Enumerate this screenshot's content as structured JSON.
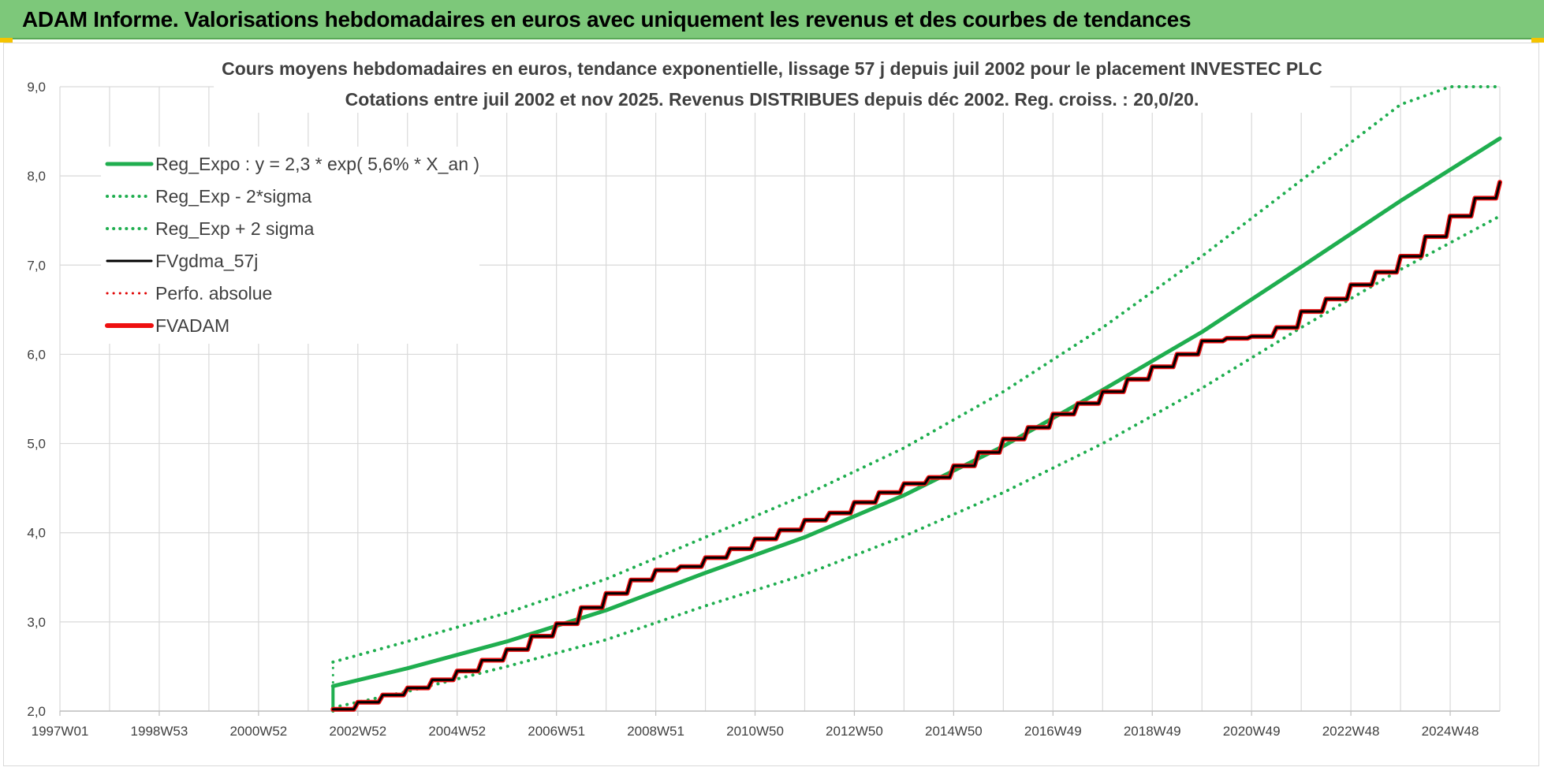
{
  "header": {
    "title": "ADAM Informe. Valorisations hebdomadaires en euros avec uniquement les revenus et des courbes de tendances"
  },
  "colors": {
    "banner": "#7dc87a",
    "trend": "#1fae4f",
    "gdma": "#000000",
    "perf": "#e00000",
    "adam": "#ee1010",
    "grid": "#d9d9d9"
  },
  "chart_data": {
    "type": "line",
    "title_lines": [
      "Cours moyens hebdomadaires en euros, tendance exponentielle, lissage 57 j depuis juil 2002 pour le placement INVESTEC PLC",
      "Cotations entre juil 2002 et nov 2025. Revenus DISTRIBUES depuis déc 2002. Reg. croiss. : 20,0/20."
    ],
    "x_tick_labels": [
      "1997W01",
      "1998W53",
      "2000W52",
      "2002W52",
      "2004W52",
      "2006W51",
      "2008W51",
      "2010W50",
      "2012W50",
      "2014W50",
      "2016W49",
      "2018W49",
      "2020W49",
      "2022W48",
      "2024W48"
    ],
    "x_range": [
      1997.0,
      2026.0
    ],
    "ylim": [
      2.0,
      9.0
    ],
    "y_ticks": [
      2,
      3,
      4,
      5,
      6,
      7,
      8,
      9
    ],
    "y_tick_labels": [
      "2,0",
      "3,0",
      "4,0",
      "5,0",
      "6,0",
      "7,0",
      "8,0",
      "9,0"
    ],
    "legend": [
      {
        "name": "Reg_Expo : y = 2,3 * exp( 5,6% *  X_an )",
        "color": "#1fae4f",
        "style": "solid",
        "width": 5
      },
      {
        "name": "Reg_Exp - 2*sigma",
        "color": "#1fae4f",
        "style": "dotted",
        "width": 4
      },
      {
        "name": "Reg_Exp + 2 sigma",
        "color": "#1fae4f",
        "style": "dotted",
        "width": 4
      },
      {
        "name": "FVgdma_57j",
        "color": "#000000",
        "style": "solid",
        "width": 3
      },
      {
        "name": "Perfo. absolue",
        "color": "#e00000",
        "style": "dotted",
        "width": 3
      },
      {
        "name": "FVADAM",
        "color": "#ee1010",
        "style": "solid",
        "width": 6
      }
    ],
    "legend_position": "top-left",
    "series": [
      {
        "name": "Reg_Expo : y = 2,3 * exp( 5,6% *  X_an )",
        "x": [
          2002.5,
          2004.0,
          2006.0,
          2008.0,
          2010.0,
          2012.0,
          2014.0,
          2016.0,
          2018.0,
          2020.0,
          2022.0,
          2024.0,
          2026.0
        ],
        "y": [
          2.28,
          2.48,
          2.78,
          3.13,
          3.55,
          3.95,
          4.42,
          4.97,
          5.6,
          6.25,
          6.98,
          7.72,
          8.42
        ]
      },
      {
        "name": "Reg_Exp - 2*sigma",
        "x": [
          2002.5,
          2004.0,
          2006.0,
          2008.0,
          2010.0,
          2012.0,
          2014.0,
          2016.0,
          2018.0,
          2020.0,
          2022.0,
          2024.0,
          2026.0
        ],
        "y": [
          2.04,
          2.22,
          2.5,
          2.8,
          3.18,
          3.53,
          3.96,
          4.45,
          5.0,
          5.62,
          6.3,
          6.95,
          7.55
        ]
      },
      {
        "name": "Reg_Exp + 2 sigma",
        "x": [
          2002.5,
          2004.0,
          2006.0,
          2008.0,
          2010.0,
          2012.0,
          2014.0,
          2016.0,
          2018.0,
          2020.0,
          2022.0,
          2024.0,
          2025.0,
          2026.0
        ],
        "y": [
          2.55,
          2.78,
          3.1,
          3.48,
          3.95,
          4.42,
          4.95,
          5.58,
          6.3,
          7.1,
          7.95,
          8.8,
          9.0,
          9.0
        ]
      },
      {
        "name": "FVADAM",
        "x": [
          2002.5,
          2003.0,
          2003.5,
          2004.0,
          2004.5,
          2005.0,
          2005.5,
          2006.0,
          2006.5,
          2007.0,
          2007.5,
          2008.0,
          2008.5,
          2009.0,
          2009.5,
          2010.0,
          2010.5,
          2011.0,
          2011.5,
          2012.0,
          2012.5,
          2013.0,
          2013.5,
          2014.0,
          2014.5,
          2015.0,
          2015.5,
          2016.0,
          2016.5,
          2017.0,
          2017.5,
          2018.0,
          2018.5,
          2019.0,
          2019.5,
          2020.0,
          2020.5,
          2021.0,
          2021.5,
          2022.0,
          2022.5,
          2023.0,
          2023.5,
          2024.0,
          2024.5,
          2025.0,
          2025.5,
          2026.0
        ],
        "y": [
          2.02,
          2.1,
          2.18,
          2.26,
          2.35,
          2.45,
          2.57,
          2.69,
          2.84,
          2.98,
          3.16,
          3.32,
          3.47,
          3.58,
          3.62,
          3.72,
          3.82,
          3.93,
          4.03,
          4.14,
          4.22,
          4.34,
          4.45,
          4.55,
          4.62,
          4.75,
          4.9,
          5.05,
          5.18,
          5.33,
          5.45,
          5.58,
          5.72,
          5.86,
          6.0,
          6.15,
          6.18,
          6.2,
          6.3,
          6.48,
          6.62,
          6.78,
          6.92,
          7.1,
          7.32,
          7.55,
          7.75,
          7.93
        ]
      },
      {
        "name": "FVgdma_57j",
        "x": [
          2002.5,
          2003.0,
          2003.5,
          2004.0,
          2004.5,
          2005.0,
          2005.5,
          2006.0,
          2006.5,
          2007.0,
          2007.5,
          2008.0,
          2008.5,
          2009.0,
          2009.5,
          2010.0,
          2010.5,
          2011.0,
          2011.5,
          2012.0,
          2012.5,
          2013.0,
          2013.5,
          2014.0,
          2014.5,
          2015.0,
          2015.5,
          2016.0,
          2016.5,
          2017.0,
          2017.5,
          2018.0,
          2018.5,
          2019.0,
          2019.5,
          2020.0,
          2020.5,
          2021.0,
          2021.5,
          2022.0,
          2022.5,
          2023.0,
          2023.5,
          2024.0,
          2024.5,
          2025.0,
          2025.5,
          2026.0
        ],
        "y": [
          2.02,
          2.1,
          2.18,
          2.26,
          2.35,
          2.45,
          2.57,
          2.69,
          2.84,
          2.98,
          3.16,
          3.32,
          3.47,
          3.58,
          3.62,
          3.72,
          3.82,
          3.93,
          4.03,
          4.14,
          4.22,
          4.34,
          4.45,
          4.55,
          4.62,
          4.75,
          4.9,
          5.05,
          5.18,
          5.33,
          5.45,
          5.58,
          5.72,
          5.86,
          6.0,
          6.15,
          6.18,
          6.2,
          6.3,
          6.48,
          6.62,
          6.78,
          6.92,
          7.1,
          7.32,
          7.55,
          7.75,
          7.93
        ]
      }
    ]
  }
}
